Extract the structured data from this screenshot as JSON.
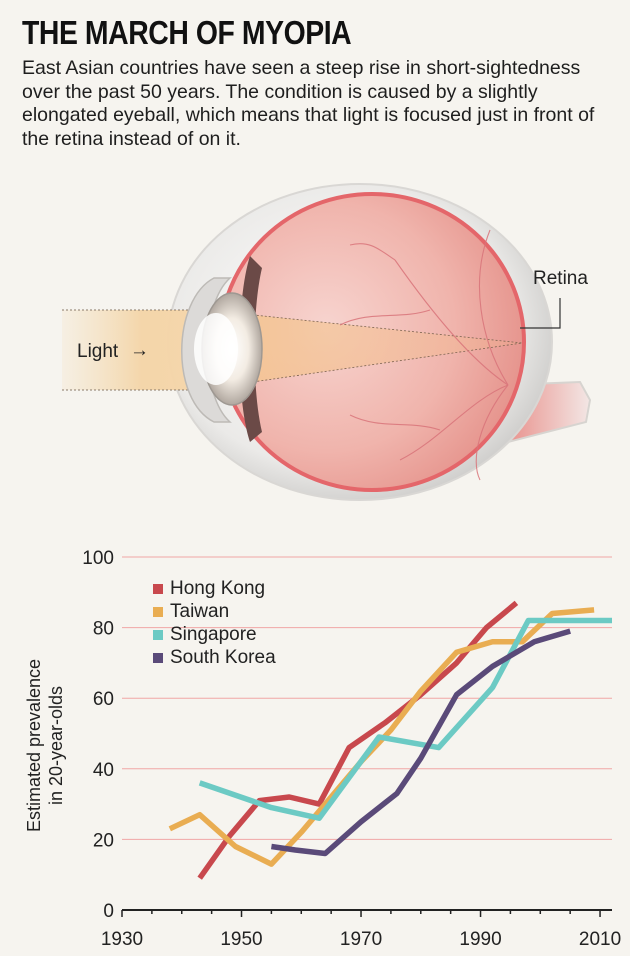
{
  "header": {
    "title": "THE MARCH OF MYOPIA",
    "subtitle": "East Asian countries have seen a steep rise in short-sightedness over the past 50 years. The condition is caused by a slightly elongated eyeball, which means that light is focused just in front of the retina instead of on it."
  },
  "illustration": {
    "light_label": "Light",
    "light_arrow": "→",
    "retina_label": "Retina"
  },
  "colors": {
    "hong_kong": "#c8484d",
    "taiwan": "#e9ad52",
    "singapore": "#6ccac4",
    "south_korea": "#5a4a79",
    "gridline": "#f0a6a6",
    "axis": "#222222"
  },
  "chart_data": {
    "type": "line",
    "ylabel": "Estimated prevalence in 20-year-olds",
    "ylabel_lines": [
      "Estimated prevalence",
      "in 20-year-olds"
    ],
    "xlim": [
      1930,
      2012
    ],
    "ylim": [
      0,
      100
    ],
    "x_ticks": [
      1930,
      1950,
      1970,
      1990,
      2010
    ],
    "y_ticks": [
      0,
      20,
      40,
      60,
      80,
      100
    ],
    "grid": "horizontal",
    "legend_position": "top-left",
    "series": [
      {
        "name": "Hong Kong",
        "color": "#c8484d",
        "points": [
          [
            1943,
            9
          ],
          [
            1948,
            21
          ],
          [
            1953,
            31
          ],
          [
            1958,
            32
          ],
          [
            1963,
            30
          ],
          [
            1968,
            46
          ],
          [
            1974,
            53
          ],
          [
            1980,
            61
          ],
          [
            1986,
            70
          ],
          [
            1991,
            80
          ],
          [
            1996,
            87
          ]
        ]
      },
      {
        "name": "Taiwan",
        "color": "#e9ad52",
        "points": [
          [
            1938,
            23
          ],
          [
            1943,
            27
          ],
          [
            1949,
            18
          ],
          [
            1955,
            13
          ],
          [
            1960,
            22
          ],
          [
            1965,
            32
          ],
          [
            1970,
            42
          ],
          [
            1975,
            51
          ],
          [
            1980,
            62
          ],
          [
            1986,
            73
          ],
          [
            1992,
            76
          ],
          [
            1997,
            76
          ],
          [
            2002,
            84
          ],
          [
            2009,
            85
          ]
        ]
      },
      {
        "name": "Singapore",
        "color": "#6ccac4",
        "points": [
          [
            1943,
            36
          ],
          [
            1955,
            29
          ],
          [
            1963,
            26
          ],
          [
            1973,
            49
          ],
          [
            1983,
            46
          ],
          [
            1992,
            63
          ],
          [
            1998,
            82
          ],
          [
            2003,
            82
          ],
          [
            2012,
            82
          ]
        ]
      },
      {
        "name": "South Korea",
        "color": "#5a4a79",
        "points": [
          [
            1955,
            18
          ],
          [
            1959,
            17
          ],
          [
            1964,
            16
          ],
          [
            1970,
            25
          ],
          [
            1976,
            33
          ],
          [
            1980,
            43
          ],
          [
            1986,
            61
          ],
          [
            1992,
            69
          ],
          [
            1999,
            76
          ],
          [
            2005,
            79
          ]
        ]
      }
    ]
  }
}
